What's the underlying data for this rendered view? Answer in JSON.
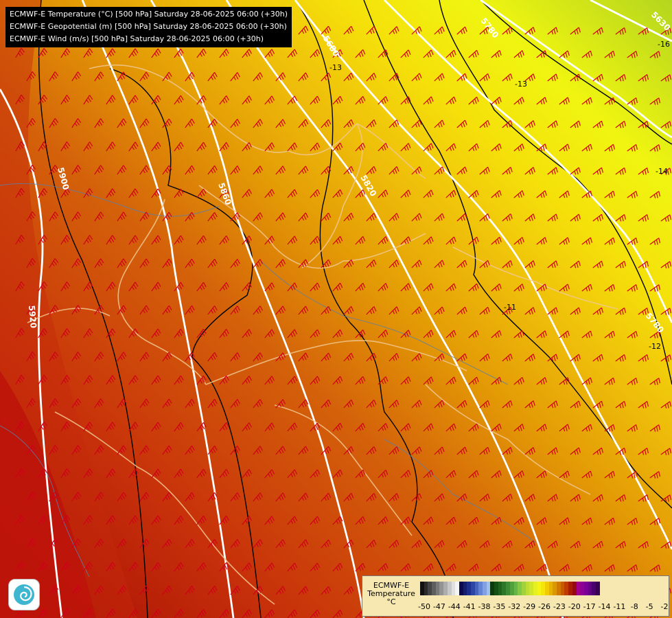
{
  "titles": [
    "ECMWF-E Temperature (°C) [500 hPa] Saturday 28-06-2025 06:00 (+30h)",
    "ECMWF-E Geopotential (m) [500 hPa] Saturday 28-06-2025 06:00 (+30h)",
    "ECMWF-E Wind (m/s) [500 hPa] Saturday 28-06-2025 06:00 (+30h)"
  ],
  "legend": {
    "label_line1": "ECMWF-E",
    "label_line2": "Temperature",
    "label_line3": "°C",
    "ticks": [
      "-50",
      "-47",
      "-44",
      "-41",
      "-38",
      "-35",
      "-32",
      "-29",
      "-26",
      "-23",
      "-20",
      "-17",
      "-14",
      "-11",
      "-8",
      "-5",
      "-2"
    ],
    "colors": [
      "#111111",
      "#2a2a2a",
      "#444444",
      "#5e5e5e",
      "#787878",
      "#939393",
      "#adadad",
      "#c8c8c8",
      "#e0e0e0",
      "#f4f4f4",
      "#0a0a50",
      "#141e6e",
      "#1e2d8c",
      "#2d46a5",
      "#4664be",
      "#6482d2",
      "#82a0e1",
      "#a0beee",
      "#0a3c0a",
      "#145014",
      "#1e641e",
      "#2d7828",
      "#3c8c32",
      "#50a03c",
      "#64b446",
      "#82c846",
      "#a0d23c",
      "#bedc32",
      "#d2e628",
      "#e6f01e",
      "#f5f514",
      "#f5e60a",
      "#f0cd00",
      "#e6b400",
      "#dc9600",
      "#d27800",
      "#c85a00",
      "#be3c00",
      "#aa1e00",
      "#960a14",
      "#a0008c",
      "#8c0096",
      "#780096",
      "#640082",
      "#4b006e",
      "#370055"
    ]
  },
  "contours": {
    "geopotential_labels": [
      "5680",
      "5780",
      "5820",
      "5860",
      "5900",
      "5920",
      "5780",
      "5630"
    ],
    "temperature_labels": [
      "-13",
      "-13",
      "-11",
      "-12",
      "-16",
      "-14"
    ]
  },
  "colors": {
    "contour_white": "#ffffff",
    "isotherm_black": "#000000",
    "border_tan": "#f0c890",
    "river_blue": "#5a7faa",
    "wind_barb": "#d0001a"
  },
  "icons": {
    "logo": "ecmwf-spiral-icon"
  }
}
